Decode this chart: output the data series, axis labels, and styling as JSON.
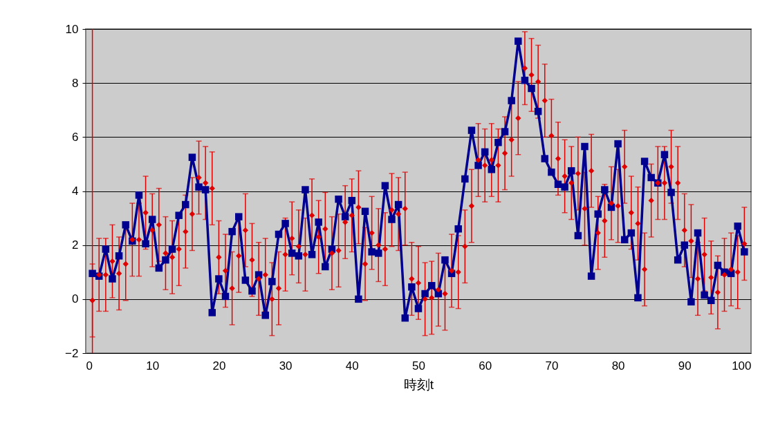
{
  "chart_data": {
    "type": "line",
    "xlabel": "時刻t",
    "x": [
      1,
      2,
      3,
      4,
      5,
      6,
      7,
      8,
      9,
      10,
      11,
      12,
      13,
      14,
      15,
      16,
      17,
      18,
      19,
      20,
      21,
      22,
      23,
      24,
      25,
      26,
      27,
      28,
      29,
      30,
      31,
      32,
      33,
      34,
      35,
      36,
      37,
      38,
      39,
      40,
      41,
      42,
      43,
      44,
      45,
      46,
      47,
      48,
      49,
      50,
      51,
      52,
      53,
      54,
      55,
      56,
      57,
      58,
      59,
      60,
      61,
      62,
      63,
      64,
      65,
      66,
      67,
      68,
      69,
      70,
      71,
      72,
      73,
      74,
      75,
      76,
      77,
      78,
      79,
      80,
      81,
      82,
      83,
      84,
      85,
      86,
      87,
      88,
      89,
      90,
      91,
      92,
      93,
      94,
      95,
      96,
      97,
      98,
      99
    ],
    "series": [
      {
        "type": "scatter",
        "marker": "diamond",
        "color": "#e00000",
        "values": [
          -0.05,
          0.9,
          0.9,
          1.4,
          0.95,
          1.3,
          2.2,
          2.2,
          3.2,
          2.55,
          2.75,
          1.7,
          1.55,
          1.85,
          2.5,
          3.15,
          4.5,
          4.3,
          4.1,
          1.55,
          1.05,
          0.4,
          1.6,
          2.55,
          1.45,
          0.75,
          0.9,
          0.0,
          0.4,
          1.65,
          2.25,
          1.95,
          1.65,
          3.1,
          2.3,
          2.6,
          1.7,
          1.8,
          2.85,
          3.1,
          3.4,
          1.3,
          2.45,
          2.0,
          1.85,
          3.3,
          3.15,
          3.35,
          0.75,
          0.6,
          0.0,
          0.05,
          0.35,
          0.2,
          1.05,
          1.0,
          1.95,
          3.45,
          5.15,
          4.95,
          5.15,
          4.95,
          5.4,
          5.9,
          6.7,
          8.55,
          8.3,
          8.05,
          7.35,
          6.05,
          5.2,
          4.55,
          4.3,
          4.65,
          3.35,
          4.75,
          2.45,
          2.9,
          3.55,
          3.45,
          4.9,
          3.2,
          2.8,
          1.1,
          3.65,
          4.3,
          4.3,
          4.9,
          4.3,
          2.55,
          2.15,
          0.75,
          1.65,
          0.8,
          0.25,
          0.9,
          1.1,
          1.0,
          2.05
        ],
        "errors": [
          1.35,
          1.35,
          1.35,
          1.35,
          1.35,
          1.35,
          1.35,
          1.35,
          1.35,
          1.35,
          1.35,
          1.35,
          1.35,
          1.35,
          1.35,
          1.35,
          1.35,
          1.35,
          1.35,
          1.35,
          1.35,
          1.35,
          1.35,
          1.35,
          1.35,
          1.35,
          1.35,
          1.35,
          1.35,
          1.35,
          1.35,
          1.35,
          1.35,
          1.35,
          1.35,
          1.35,
          1.35,
          1.35,
          1.35,
          1.35,
          1.35,
          1.35,
          1.35,
          1.35,
          1.35,
          1.35,
          1.35,
          1.35,
          1.35,
          1.35,
          1.35,
          1.35,
          1.35,
          1.35,
          1.35,
          1.35,
          1.35,
          1.35,
          1.35,
          1.35,
          1.35,
          1.35,
          1.35,
          1.35,
          1.35,
          1.35,
          1.35,
          1.35,
          1.35,
          1.35,
          1.35,
          1.35,
          1.35,
          1.35,
          1.35,
          1.35,
          1.35,
          1.35,
          1.35,
          1.35,
          1.35,
          1.35,
          1.35,
          1.35,
          1.35,
          1.35,
          1.35,
          1.35,
          1.35,
          1.35,
          1.35,
          1.35,
          1.35,
          1.35,
          1.35,
          1.35,
          1.35,
          1.35,
          1.35
        ]
      },
      {
        "type": "line",
        "marker": "square",
        "line_style": "solid",
        "color": "#000090",
        "values": [
          0.95,
          0.85,
          1.85,
          0.75,
          1.6,
          2.75,
          2.15,
          3.85,
          2.05,
          2.95,
          1.15,
          1.45,
          1.85,
          3.1,
          3.5,
          5.25,
          4.15,
          4.05,
          -0.5,
          0.75,
          0.1,
          2.5,
          3.05,
          0.7,
          0.3,
          0.9,
          -0.6,
          0.65,
          2.4,
          2.8,
          1.7,
          1.6,
          4.05,
          1.65,
          2.85,
          1.2,
          1.85,
          3.7,
          3.05,
          3.65,
          0.0,
          3.25,
          1.75,
          1.7,
          4.2,
          2.95,
          3.5,
          -0.7,
          0.45,
          -0.35,
          0.2,
          0.5,
          0.2,
          1.45,
          0.95,
          2.6,
          4.45,
          6.25,
          4.95,
          5.45,
          4.8,
          5.8,
          6.2,
          7.35,
          9.55,
          8.1,
          7.8,
          6.95,
          5.2,
          4.7,
          4.25,
          4.15,
          4.75,
          2.35,
          5.65,
          0.85,
          3.15,
          4.05,
          3.4,
          5.75,
          2.2,
          2.45,
          0.05,
          5.1,
          4.5,
          4.3,
          5.35,
          3.95,
          1.45,
          2.0,
          -0.1,
          2.45,
          0.15,
          -0.05,
          1.25,
          1.0,
          0.95,
          2.7,
          1.75
        ]
      }
    ],
    "ref_lines": [
      {
        "axis": "x",
        "value": 1,
        "color": "#e00000"
      }
    ],
    "xlim": [
      0,
      100
    ],
    "xticks": [
      0,
      10,
      20,
      30,
      40,
      50,
      60,
      70,
      80,
      90,
      100
    ],
    "ylim": [
      -2,
      10
    ],
    "yticks": [
      {
        "value": -2,
        "label": "−2"
      },
      0,
      2,
      4,
      6,
      8,
      10
    ],
    "grid": "y",
    "legend": false
  }
}
